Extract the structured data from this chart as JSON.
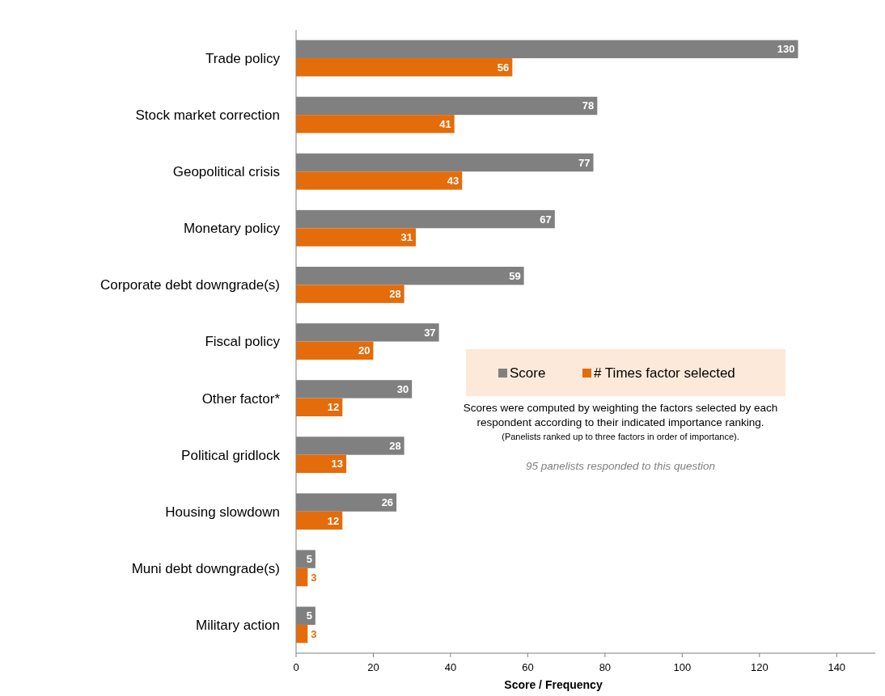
{
  "chart_data": {
    "type": "bar",
    "orientation": "horizontal",
    "xlabel": "Score / Frequency",
    "categories": [
      "Trade policy",
      "Stock market correction",
      "Geopolitical crisis",
      "Monetary policy",
      "Corporate debt downgrade(s)",
      "Fiscal policy",
      "Other factor*",
      "Political gridlock",
      "Housing slowdown",
      "Muni debt downgrade(s)",
      "Military action"
    ],
    "series": [
      {
        "name": "Score",
        "color": "#808080",
        "values": [
          130,
          78,
          77,
          67,
          59,
          37,
          30,
          28,
          26,
          5,
          5
        ]
      },
      {
        "name": "# Times factor selected",
        "color": "#e46c0a",
        "values": [
          56,
          41,
          43,
          31,
          28,
          20,
          12,
          13,
          12,
          3,
          3
        ]
      }
    ],
    "xlim": [
      0,
      150
    ],
    "xticks": [
      0,
      20,
      40,
      60,
      80,
      100,
      120,
      140
    ],
    "data_labels": true,
    "legend": "right",
    "grid": false,
    "annotations": [
      "Scores were computed by weighting the factors selected by each",
      "respondent according to their indicated importance ranking.",
      "(Panelists ranked up to three factors in order of importance).",
      "95  panelists responded to this question"
    ]
  }
}
